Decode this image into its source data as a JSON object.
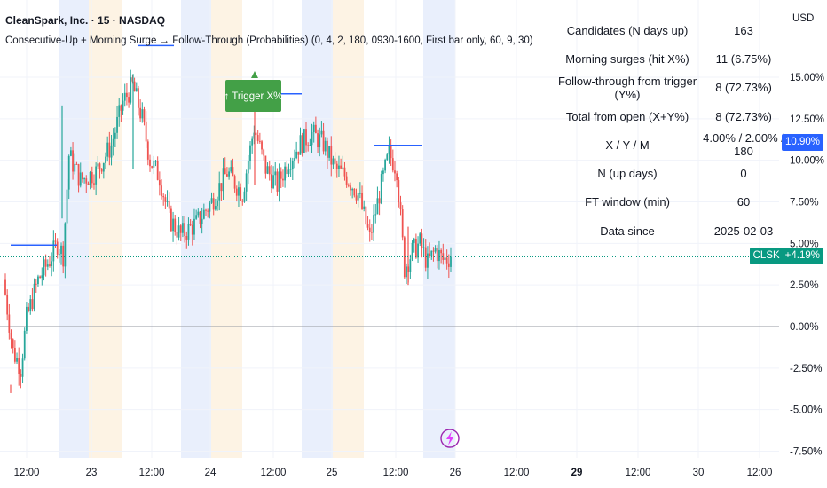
{
  "header": {
    "title": "CleanSpark, Inc. · 15 · NASDAQ",
    "indicator": "Consecutive-Up + Morning Surge → Follow-Through (Probabilities) (0, 4, 2, 180, 0930-1600, First bar only, 60, 9, 30)"
  },
  "currency": "USD",
  "trigger_label": "↑ Trigger X%",
  "stats": [
    {
      "label": "Candidates (N days up)",
      "value": "163"
    },
    {
      "label": "Morning surges (hit X%)",
      "value": "11 (6.75%)"
    },
    {
      "label": "Follow-through from trigger (Y%)",
      "value": "8 (72.73%)"
    },
    {
      "label": "Total from open (X+Y%)",
      "value": "8 (72.73%)"
    },
    {
      "label": "X / Y / M",
      "value": "4.00% / 2.00% / 180"
    },
    {
      "label": "N (up days)",
      "value": "0"
    },
    {
      "label": "FT window (min)",
      "value": "60"
    },
    {
      "label": "Data since",
      "value": "2025-02-03"
    }
  ],
  "price_tag": {
    "symbol": "CLSK",
    "value": "+4.19%"
  },
  "high_tag": "10.90%",
  "colors": {
    "up": "#26a69a",
    "down": "#ef5350",
    "session_blue": "#e9effc",
    "session_orange": "#fdf3e4",
    "blue_line": "#2962ff",
    "tag_green": "#089981",
    "tag_blue": "#2962ff",
    "trigger_green": "#43a047"
  },
  "chart_data": {
    "type": "candlestick",
    "y_axis_unit": "%",
    "ylim": [
      -7.9,
      18.2
    ],
    "y_ticks": [
      "15.00%",
      "12.50%",
      "10.00%",
      "7.50%",
      "5.00%",
      "2.50%",
      "0.00%",
      "-2.50%",
      "-5.00%",
      "-7.50%"
    ],
    "y_tick_values": [
      15,
      12.5,
      10,
      7.5,
      5,
      2.5,
      0,
      -2.5,
      -5,
      -7.5
    ],
    "x_ticks": [
      "12:00",
      "23",
      "12:00",
      "24",
      "12:00",
      "25",
      "12:00",
      "26",
      "12:00",
      "29",
      "12:00",
      "30",
      "12:00"
    ],
    "x_tick_bold": [
      false,
      false,
      false,
      false,
      false,
      false,
      false,
      false,
      false,
      true,
      false,
      false,
      false
    ],
    "last_value": 4.19,
    "high_marker": 10.9,
    "grid": true,
    "price_path": [
      {
        "bar": 0,
        "value": 2.8
      },
      {
        "bar": 5,
        "value": -1.5
      },
      {
        "bar": 9,
        "value": -2.5
      },
      {
        "bar": 12,
        "value": 0.5
      },
      {
        "bar": 18,
        "value": 2.8
      },
      {
        "bar": 24,
        "value": 4.0
      },
      {
        "bar": 28,
        "value": 5.0
      },
      {
        "bar": 31,
        "value": 4.3
      },
      {
        "bar": 34,
        "value": 10.3
      },
      {
        "bar": 40,
        "value": 8.8
      },
      {
        "bar": 48,
        "value": 9.3
      },
      {
        "bar": 56,
        "value": 10.9
      },
      {
        "bar": 62,
        "value": 13.5
      },
      {
        "bar": 67,
        "value": 14.5
      },
      {
        "bar": 72,
        "value": 12.5
      },
      {
        "bar": 76,
        "value": 10.0
      },
      {
        "bar": 81,
        "value": 9.0
      },
      {
        "bar": 86,
        "value": 6.5
      },
      {
        "bar": 92,
        "value": 5.5
      },
      {
        "bar": 100,
        "value": 6.2
      },
      {
        "bar": 108,
        "value": 7.5
      },
      {
        "bar": 116,
        "value": 9.3
      },
      {
        "bar": 124,
        "value": 8.0
      },
      {
        "bar": 130,
        "value": 12.0
      },
      {
        "bar": 136,
        "value": 9.5
      },
      {
        "bar": 142,
        "value": 8.5
      },
      {
        "bar": 148,
        "value": 10.0
      },
      {
        "bar": 154,
        "value": 11.0
      },
      {
        "bar": 160,
        "value": 11.6
      },
      {
        "bar": 166,
        "value": 11.0
      },
      {
        "bar": 172,
        "value": 9.5
      },
      {
        "bar": 178,
        "value": 9.0
      },
      {
        "bar": 184,
        "value": 8.0
      },
      {
        "bar": 190,
        "value": 5.3
      },
      {
        "bar": 196,
        "value": 8.5
      },
      {
        "bar": 200,
        "value": 10.4
      },
      {
        "bar": 204,
        "value": 9.5
      },
      {
        "bar": 208,
        "value": 3.5
      },
      {
        "bar": 212,
        "value": 4.5
      },
      {
        "bar": 216,
        "value": 5.0
      },
      {
        "bar": 220,
        "value": 3.8
      },
      {
        "bar": 224,
        "value": 4.6
      },
      {
        "bar": 228,
        "value": 4.0
      },
      {
        "bar": 232,
        "value": 4.19
      }
    ]
  }
}
